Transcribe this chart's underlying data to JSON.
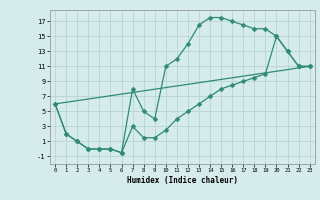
{
  "xlabel": "Humidex (Indice chaleur)",
  "bg_color": "#d6ecec",
  "line_color": "#2e8b74",
  "grid_color": "#b8d4d4",
  "x_ticks": [
    0,
    1,
    2,
    3,
    4,
    5,
    6,
    7,
    8,
    9,
    10,
    11,
    12,
    13,
    14,
    15,
    16,
    17,
    18,
    19,
    20,
    21,
    22,
    23
  ],
  "y_ticks": [
    -1,
    1,
    3,
    5,
    7,
    9,
    11,
    13,
    15,
    17
  ],
  "xlim": [
    -0.5,
    23.5
  ],
  "ylim": [
    -2.0,
    18.5
  ],
  "curve1_x": [
    0,
    1,
    2,
    3,
    4,
    5,
    6,
    7,
    8,
    9,
    10,
    11,
    12,
    13,
    14,
    15,
    16,
    17,
    18,
    19,
    20,
    21,
    22,
    23
  ],
  "curve1_y": [
    6,
    2,
    1,
    0,
    0,
    0,
    -0.5,
    8,
    5,
    4,
    11,
    12,
    14,
    16.5,
    17.5,
    17.5,
    17,
    16.5,
    16,
    16,
    15,
    13,
    11,
    11
  ],
  "curve2_x": [
    0,
    1,
    2,
    3,
    4,
    5,
    6,
    7,
    8,
    9,
    10,
    11,
    12,
    13,
    14,
    15,
    16,
    17,
    18,
    19,
    20,
    21,
    22,
    23
  ],
  "curve2_y": [
    6,
    2,
    1,
    0,
    0,
    0,
    -0.5,
    3,
    1.5,
    1.5,
    2.5,
    4,
    5,
    6,
    7,
    8,
    8.5,
    9,
    9.5,
    10,
    15,
    13,
    11,
    11
  ],
  "curve3_x": [
    0,
    23
  ],
  "curve3_y": [
    6,
    11
  ]
}
